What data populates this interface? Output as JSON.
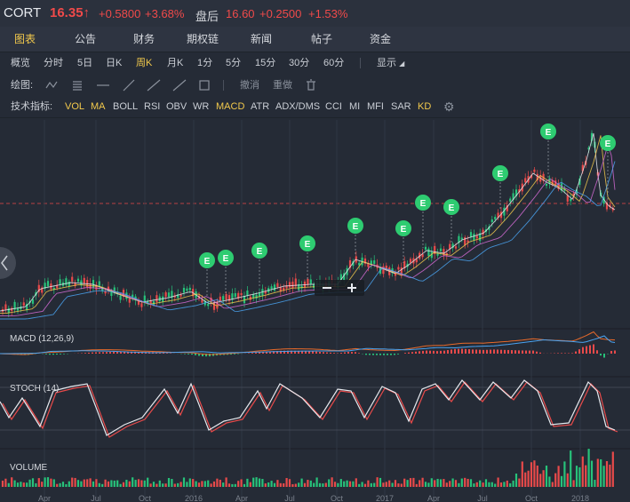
{
  "header": {
    "symbol": "CORT",
    "price": "16.35↑",
    "change": "+0.5800",
    "change_pct": "+3.68%",
    "after_label": "盘后",
    "after_price": "16.60",
    "after_change": "+0.2500",
    "after_change_pct": "+1.53%"
  },
  "tabs": [
    "图表",
    "公告",
    "财务",
    "期权链",
    "新闻",
    "帖子",
    "资金"
  ],
  "periods": [
    "概览",
    "分时",
    "5日",
    "日K",
    "周K",
    "月K",
    "1分",
    "5分",
    "15分",
    "30分",
    "60分"
  ],
  "display_label": "显示",
  "draw": {
    "label": "绘图:",
    "undo": "撤消",
    "redo": "重做"
  },
  "indicators": {
    "label": "技术指标:",
    "items": [
      "VOL",
      "MA",
      "BOLL",
      "RSI",
      "OBV",
      "WR",
      "MACD",
      "ATR",
      "ADX/DMS",
      "CCI",
      "MI",
      "MFI",
      "SAR",
      "KD"
    ]
  },
  "events": [
    "E",
    "E",
    "E",
    "E",
    "E",
    "E",
    "E",
    "E",
    "E",
    "E",
    "E"
  ],
  "panels": {
    "macd": "MACD (12,26,9)",
    "stoch": "STOCH (14)",
    "volume": "VOLUME"
  },
  "axis_labels": [
    "Apr",
    "Jul",
    "Oct",
    "2016",
    "Apr",
    "Jul",
    "Oct",
    "2017",
    "Apr",
    "Jul",
    "Oct",
    "2018"
  ],
  "colors": {
    "up": "#e84a4a",
    "down": "#27c27a",
    "accent": "#f2c94c",
    "event": "#2ecc71"
  }
}
